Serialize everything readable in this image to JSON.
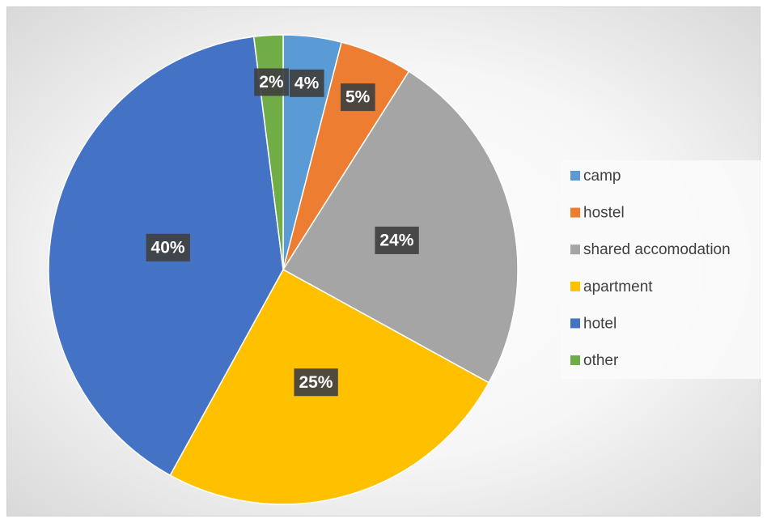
{
  "chart_data": {
    "type": "pie",
    "categories": [
      "camp",
      "hostel",
      "shared accomodation",
      "apartment",
      "hotel",
      "other"
    ],
    "values": [
      4,
      5,
      24,
      25,
      40,
      2
    ],
    "value_labels": [
      "4%",
      "5%",
      "24%",
      "25%",
      "40%",
      "2%"
    ],
    "colors": [
      "#5B9BD5",
      "#ED7D31",
      "#A5A5A5",
      "#FFC000",
      "#4472C4",
      "#70AD47"
    ],
    "legend": "right"
  }
}
